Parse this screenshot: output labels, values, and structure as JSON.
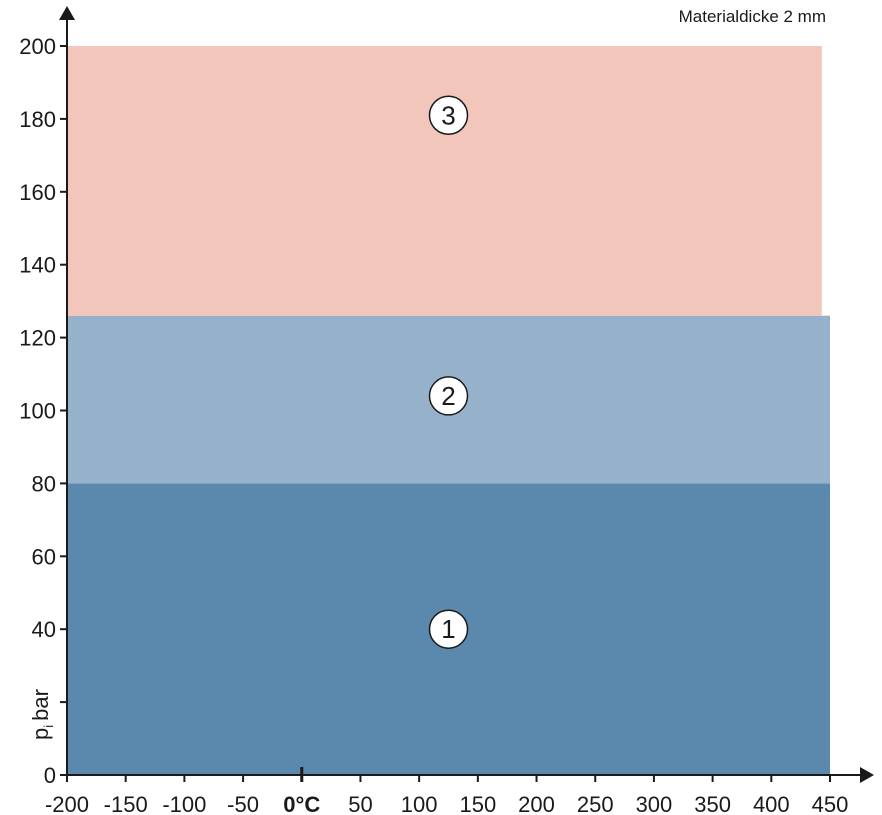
{
  "chart_data": {
    "type": "area",
    "title": "",
    "note": "Materialdicke 2 mm",
    "ylabel": {
      "main": "p",
      "subscript": "i",
      "unit": "bar"
    },
    "xlabel": "",
    "x_unit_label": "0°C",
    "xlim": [
      -200,
      450
    ],
    "ylim": [
      0,
      200
    ],
    "x_ticks": [
      -200,
      -150,
      -100,
      -50,
      0,
      50,
      100,
      150,
      200,
      250,
      300,
      350,
      400,
      450
    ],
    "x_tick_labels": [
      "-200",
      "-150",
      "-100",
      "-50",
      "0°C",
      "50",
      "100",
      "150",
      "200",
      "250",
      "300",
      "350",
      "400",
      "450"
    ],
    "y_ticks": [
      0,
      20,
      40,
      60,
      80,
      100,
      120,
      140,
      160,
      180,
      200
    ],
    "y_tick_labels": [
      "0",
      "",
      "40",
      "60",
      "80",
      "100",
      "120",
      "140",
      "160",
      "180",
      "200"
    ],
    "grid": false,
    "legend": "none",
    "regions": [
      {
        "label": "1",
        "x_range": [
          -200,
          450
        ],
        "y_range": [
          0,
          80
        ],
        "color": "#5b89ad"
      },
      {
        "label": "2",
        "x_range": [
          -200,
          450
        ],
        "y_range": [
          80,
          126
        ],
        "color": "#96b2cb"
      },
      {
        "label": "3",
        "x_range": [
          -200,
          443
        ],
        "y_range": [
          126,
          200
        ],
        "color": "#f2c6bb"
      }
    ],
    "markers": [
      {
        "label": "1",
        "x": 125,
        "y": 40
      },
      {
        "label": "2",
        "x": 125,
        "y": 104
      },
      {
        "label": "3",
        "x": 125,
        "y": 181
      }
    ]
  }
}
